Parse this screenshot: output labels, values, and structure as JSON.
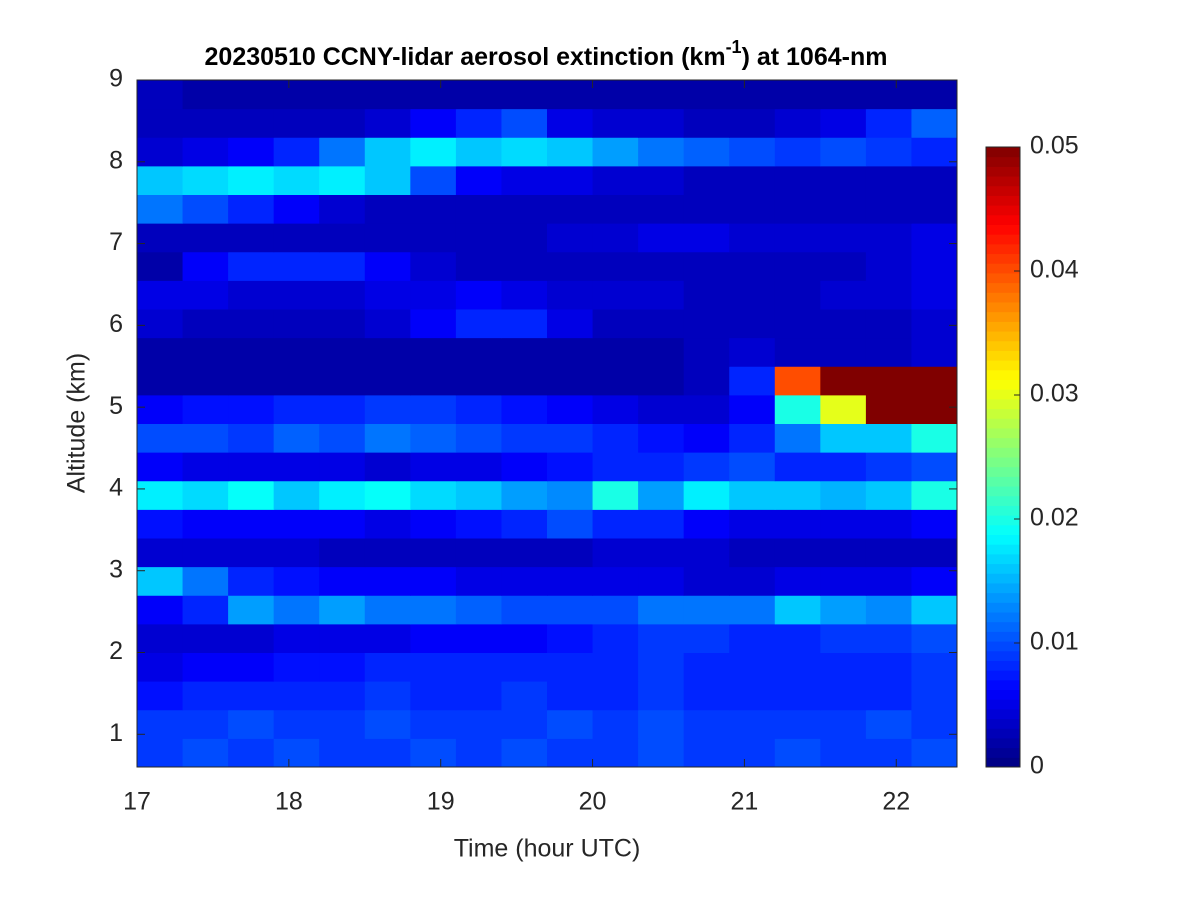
{
  "chart_data": {
    "type": "heatmap",
    "title": [
      "20230510 CCNY-lidar aerosol extinction (km",
      "-1",
      ") at 1064-nm"
    ],
    "xlabel": "Time (hour UTC)",
    "ylabel": "Altitude (km)",
    "x": [
      17.15,
      17.45,
      17.75,
      18.05,
      18.35,
      18.65,
      18.95,
      19.25,
      19.55,
      19.85,
      20.15,
      20.45,
      20.75,
      21.05,
      21.35,
      21.65,
      21.95,
      22.25
    ],
    "y": [
      0.775,
      1.125,
      1.475,
      1.825,
      2.175,
      2.525,
      2.875,
      3.225,
      3.575,
      3.925,
      4.275,
      4.625,
      4.975,
      5.325,
      5.675,
      6.025,
      6.375,
      6.725,
      7.075,
      7.425,
      7.775,
      8.125,
      8.475,
      8.825
    ],
    "values": [
      [
        0.009,
        0.01,
        0.009,
        0.01,
        0.009,
        0.009,
        0.01,
        0.009,
        0.01,
        0.009,
        0.009,
        0.01,
        0.009,
        0.009,
        0.01,
        0.009,
        0.009,
        0.01
      ],
      [
        0.009,
        0.009,
        0.01,
        0.009,
        0.009,
        0.01,
        0.009,
        0.009,
        0.009,
        0.01,
        0.009,
        0.01,
        0.009,
        0.009,
        0.009,
        0.009,
        0.01,
        0.009
      ],
      [
        0.007,
        0.008,
        0.008,
        0.008,
        0.008,
        0.009,
        0.008,
        0.008,
        0.009,
        0.008,
        0.008,
        0.009,
        0.008,
        0.008,
        0.008,
        0.008,
        0.008,
        0.009
      ],
      [
        0.005,
        0.006,
        0.006,
        0.007,
        0.007,
        0.008,
        0.008,
        0.008,
        0.008,
        0.008,
        0.008,
        0.009,
        0.008,
        0.008,
        0.008,
        0.008,
        0.008,
        0.009
      ],
      [
        0.004,
        0.004,
        0.004,
        0.005,
        0.005,
        0.005,
        0.006,
        0.006,
        0.006,
        0.007,
        0.008,
        0.009,
        0.009,
        0.008,
        0.008,
        0.009,
        0.009,
        0.01
      ],
      [
        0.006,
        0.008,
        0.014,
        0.012,
        0.014,
        0.012,
        0.012,
        0.011,
        0.01,
        0.01,
        0.01,
        0.012,
        0.012,
        0.012,
        0.016,
        0.014,
        0.013,
        0.016
      ],
      [
        0.016,
        0.012,
        0.008,
        0.007,
        0.006,
        0.006,
        0.006,
        0.005,
        0.005,
        0.005,
        0.005,
        0.005,
        0.004,
        0.004,
        0.005,
        0.005,
        0.005,
        0.006
      ],
      [
        0.004,
        0.004,
        0.004,
        0.004,
        0.003,
        0.003,
        0.003,
        0.003,
        0.003,
        0.003,
        0.004,
        0.004,
        0.004,
        0.003,
        0.003,
        0.003,
        0.003,
        0.003
      ],
      [
        0.007,
        0.006,
        0.006,
        0.006,
        0.006,
        0.005,
        0.006,
        0.007,
        0.008,
        0.01,
        0.008,
        0.008,
        0.006,
        0.005,
        0.005,
        0.005,
        0.005,
        0.006
      ],
      [
        0.018,
        0.017,
        0.019,
        0.016,
        0.018,
        0.019,
        0.017,
        0.016,
        0.014,
        0.013,
        0.02,
        0.014,
        0.018,
        0.016,
        0.016,
        0.015,
        0.016,
        0.02
      ],
      [
        0.006,
        0.005,
        0.005,
        0.005,
        0.005,
        0.004,
        0.005,
        0.005,
        0.006,
        0.007,
        0.008,
        0.008,
        0.009,
        0.01,
        0.008,
        0.008,
        0.009,
        0.01
      ],
      [
        0.01,
        0.01,
        0.009,
        0.011,
        0.01,
        0.012,
        0.011,
        0.01,
        0.009,
        0.009,
        0.008,
        0.007,
        0.006,
        0.008,
        0.012,
        0.016,
        0.016,
        0.02
      ],
      [
        0.006,
        0.007,
        0.007,
        0.008,
        0.008,
        0.009,
        0.009,
        0.008,
        0.007,
        0.006,
        0.005,
        0.004,
        0.004,
        0.006,
        0.02,
        0.03,
        0.05,
        0.05
      ],
      [
        0.002,
        0.002,
        0.002,
        0.002,
        0.002,
        0.002,
        0.002,
        0.002,
        0.002,
        0.002,
        0.002,
        0.002,
        0.003,
        0.008,
        0.04,
        0.05,
        0.05,
        0.05
      ],
      [
        0.002,
        0.002,
        0.002,
        0.002,
        0.002,
        0.002,
        0.002,
        0.002,
        0.002,
        0.002,
        0.002,
        0.002,
        0.003,
        0.004,
        0.003,
        0.003,
        0.003,
        0.004
      ],
      [
        0.004,
        0.003,
        0.003,
        0.003,
        0.003,
        0.004,
        0.006,
        0.008,
        0.008,
        0.005,
        0.003,
        0.003,
        0.003,
        0.003,
        0.003,
        0.003,
        0.003,
        0.004
      ],
      [
        0.005,
        0.005,
        0.004,
        0.004,
        0.004,
        0.005,
        0.005,
        0.006,
        0.005,
        0.004,
        0.004,
        0.004,
        0.003,
        0.003,
        0.003,
        0.004,
        0.004,
        0.005
      ],
      [
        0.002,
        0.006,
        0.008,
        0.008,
        0.008,
        0.006,
        0.004,
        0.003,
        0.003,
        0.003,
        0.003,
        0.003,
        0.003,
        0.003,
        0.003,
        0.003,
        0.004,
        0.005
      ],
      [
        0.003,
        0.003,
        0.003,
        0.003,
        0.003,
        0.003,
        0.003,
        0.003,
        0.003,
        0.004,
        0.004,
        0.005,
        0.005,
        0.004,
        0.004,
        0.004,
        0.004,
        0.005
      ],
      [
        0.012,
        0.01,
        0.008,
        0.006,
        0.004,
        0.003,
        0.003,
        0.003,
        0.003,
        0.003,
        0.003,
        0.003,
        0.003,
        0.003,
        0.003,
        0.003,
        0.003,
        0.003
      ],
      [
        0.016,
        0.017,
        0.018,
        0.017,
        0.018,
        0.016,
        0.01,
        0.006,
        0.005,
        0.005,
        0.004,
        0.004,
        0.003,
        0.003,
        0.003,
        0.003,
        0.003,
        0.003
      ],
      [
        0.004,
        0.005,
        0.006,
        0.008,
        0.012,
        0.016,
        0.018,
        0.016,
        0.017,
        0.016,
        0.014,
        0.012,
        0.011,
        0.01,
        0.009,
        0.01,
        0.009,
        0.008
      ],
      [
        0.003,
        0.003,
        0.003,
        0.003,
        0.003,
        0.004,
        0.006,
        0.008,
        0.01,
        0.005,
        0.004,
        0.004,
        0.003,
        0.003,
        0.004,
        0.005,
        0.008,
        0.011
      ],
      [
        0.003,
        0.002,
        0.002,
        0.002,
        0.002,
        0.002,
        0.002,
        0.002,
        0.002,
        0.002,
        0.002,
        0.002,
        0.002,
        0.002,
        0.002,
        0.002,
        0.002,
        0.002
      ]
    ],
    "xlim": [
      17,
      22.4
    ],
    "xticks": [
      17,
      18,
      19,
      20,
      21,
      22
    ],
    "ylim": [
      0.6,
      9
    ],
    "yticks": [
      1,
      2,
      3,
      4,
      5,
      6,
      7,
      8,
      9
    ],
    "clim": [
      0,
      0.05
    ],
    "cticks": [
      0,
      0.01,
      0.02,
      0.03,
      0.04,
      0.05
    ],
    "colormap": "jet"
  }
}
